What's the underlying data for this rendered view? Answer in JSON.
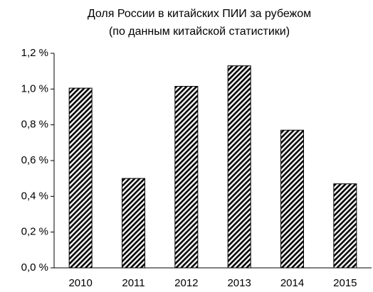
{
  "chart_data": {
    "type": "bar",
    "title": "Доля России в китайских ПИИ за рубежом",
    "subtitle": "(по данным китайской статистики)",
    "categories": [
      "2010",
      "2011",
      "2012",
      "2013",
      "2014",
      "2015"
    ],
    "values": [
      1.005,
      0.5,
      1.015,
      1.13,
      0.77,
      0.47
    ],
    "color": "#000000",
    "ylim": [
      0,
      1.2
    ],
    "yticks": [
      {
        "value": 0,
        "label": "0,0 %"
      },
      {
        "value": 0.2,
        "label": "0,2 %"
      },
      {
        "value": 0.4,
        "label": "0,4 %"
      },
      {
        "value": 0.6,
        "label": "0,6 %"
      },
      {
        "value": 0.8,
        "label": "0,8 %"
      },
      {
        "value": 1.0,
        "label": "1,0 %"
      },
      {
        "value": 1.2,
        "label": "1,2 %"
      }
    ]
  }
}
